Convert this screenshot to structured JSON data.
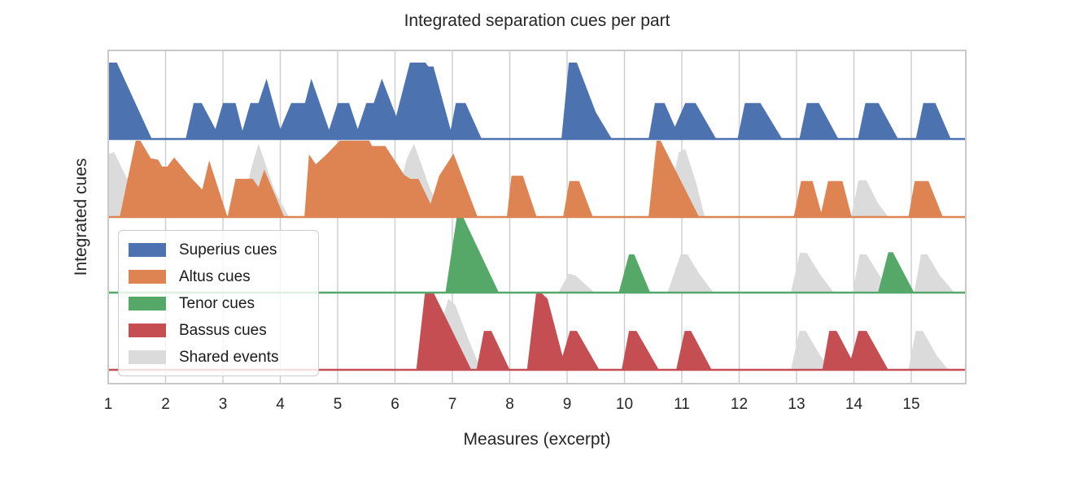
{
  "chart_data": {
    "type": "area",
    "variant": "ridgeline, one row per voice part, shared-event areas in gray behind each part",
    "title": "Integrated separation cues per part",
    "xlabel": "Measures (excerpt)",
    "ylabel": "Integrated cues",
    "x_ticks": [
      1,
      2,
      3,
      4,
      5,
      6,
      7,
      8,
      9,
      10,
      11,
      12,
      13,
      14,
      15
    ],
    "xlim": [
      0.99,
      15.96
    ],
    "grid": "vertical gridlines at each measure, no horizontal gridlines, light gray frame",
    "height_scale": "each row's values normalized 0-1 of row amplitude",
    "colors": {
      "superius": "#4C72B0",
      "altus": "#DD8452",
      "tenor": "#55A868",
      "bassus": "#C44E52",
      "shared": "#DBDBDB",
      "grid": "#CCCCCC",
      "frame": "#C9C9C9",
      "text": "#262626"
    },
    "legend": {
      "position": "lower-left",
      "entries": [
        {
          "label": "Superius cues",
          "color": "#4C72B0"
        },
        {
          "label": "Altus cues",
          "color": "#DD8452"
        },
        {
          "label": "Tenor cues",
          "color": "#55A868"
        },
        {
          "label": "Bassus cues",
          "color": "#C44E52"
        },
        {
          "label": "Shared events",
          "color": "#DBDBDB"
        }
      ]
    },
    "rows": [
      {
        "part": "Superius",
        "color": "#4C72B0",
        "shared_points": [],
        "points": [
          [
            0.99,
            1
          ],
          [
            1.15,
            1
          ],
          [
            1.76,
            0
          ],
          [
            2.35,
            0
          ],
          [
            2.49,
            0.47
          ],
          [
            2.63,
            0.47
          ],
          [
            2.87,
            0.13
          ],
          [
            3.0,
            0.47
          ],
          [
            3.22,
            0.47
          ],
          [
            3.34,
            0.11
          ],
          [
            3.48,
            0.47
          ],
          [
            3.62,
            0.47
          ],
          [
            3.76,
            0.79
          ],
          [
            4.0,
            0.13
          ],
          [
            4.19,
            0.47
          ],
          [
            4.43,
            0.47
          ],
          [
            4.54,
            0.79
          ],
          [
            4.85,
            0.12
          ],
          [
            5.0,
            0.47
          ],
          [
            5.2,
            0.47
          ],
          [
            5.35,
            0.13
          ],
          [
            5.5,
            0.47
          ],
          [
            5.63,
            0.47
          ],
          [
            5.77,
            0.79
          ],
          [
            6.02,
            0.3
          ],
          [
            6.26,
            1
          ],
          [
            6.53,
            1
          ],
          [
            6.58,
            0.95
          ],
          [
            6.67,
            0.95
          ],
          [
            6.97,
            0.12
          ],
          [
            7.06,
            0.47
          ],
          [
            7.23,
            0.47
          ],
          [
            7.51,
            0
          ],
          [
            8.9,
            0
          ],
          [
            9.03,
            1
          ],
          [
            9.17,
            1
          ],
          [
            9.5,
            0.35
          ],
          [
            9.78,
            0
          ],
          [
            10.42,
            0
          ],
          [
            10.53,
            0.47
          ],
          [
            10.7,
            0.47
          ],
          [
            10.88,
            0.16
          ],
          [
            11.06,
            0.47
          ],
          [
            11.24,
            0.47
          ],
          [
            11.6,
            0
          ],
          [
            11.97,
            0
          ],
          [
            12.1,
            0.47
          ],
          [
            12.37,
            0.47
          ],
          [
            12.75,
            0
          ],
          [
            13.05,
            0
          ],
          [
            13.18,
            0.47
          ],
          [
            13.39,
            0.47
          ],
          [
            13.73,
            0
          ],
          [
            14.07,
            0
          ],
          [
            14.2,
            0.47
          ],
          [
            14.43,
            0.47
          ],
          [
            14.77,
            0
          ],
          [
            15.08,
            0
          ],
          [
            15.21,
            0.47
          ],
          [
            15.42,
            0.47
          ],
          [
            15.69,
            0
          ],
          [
            15.96,
            0
          ]
        ]
      },
      {
        "part": "Altus",
        "color": "#DD8452",
        "shared_points": [
          [
            0.99,
            0.82
          ],
          [
            1.1,
            0.85
          ],
          [
            1.33,
            0.5
          ],
          [
            1.62,
            0.85
          ],
          [
            1.85,
            0.5
          ],
          [
            2.15,
            0
          ],
          [
            3.28,
            0
          ],
          [
            3.5,
            0.65
          ],
          [
            3.62,
            0.96
          ],
          [
            3.9,
            0.35
          ],
          [
            4.15,
            0
          ],
          [
            4.45,
            0
          ],
          [
            4.62,
            0.5
          ],
          [
            4.82,
            0
          ],
          [
            5.95,
            0
          ],
          [
            6.2,
            0.75
          ],
          [
            6.33,
            0.96
          ],
          [
            6.62,
            0.35
          ],
          [
            6.88,
            0
          ],
          [
            10.7,
            0
          ],
          [
            10.95,
            0.85
          ],
          [
            11.06,
            0.89
          ],
          [
            11.25,
            0.45
          ],
          [
            11.4,
            0
          ],
          [
            13.95,
            0
          ],
          [
            14.08,
            0.48
          ],
          [
            14.22,
            0.48
          ],
          [
            14.42,
            0.18
          ],
          [
            14.6,
            0
          ],
          [
            15.96,
            0
          ]
        ],
        "points": [
          [
            1.2,
            0
          ],
          [
            1.48,
            1
          ],
          [
            1.56,
            1
          ],
          [
            1.74,
            0.77
          ],
          [
            1.87,
            0.75
          ],
          [
            1.94,
            0.66
          ],
          [
            2.03,
            0.66
          ],
          [
            2.15,
            0.78
          ],
          [
            2.45,
            0.51
          ],
          [
            2.64,
            0.36
          ],
          [
            2.76,
            0.74
          ],
          [
            3.08,
            0
          ],
          [
            3.22,
            0.5
          ],
          [
            3.52,
            0.5
          ],
          [
            3.62,
            0.39
          ],
          [
            3.72,
            0.62
          ],
          [
            4.07,
            0
          ],
          [
            4.42,
            0
          ],
          [
            4.5,
            0.82
          ],
          [
            4.62,
            0.69
          ],
          [
            4.78,
            0.8
          ],
          [
            5.04,
            1
          ],
          [
            5.55,
            1
          ],
          [
            5.6,
            0.93
          ],
          [
            5.83,
            0.93
          ],
          [
            6.16,
            0.55
          ],
          [
            6.27,
            0.5
          ],
          [
            6.41,
            0.5
          ],
          [
            6.62,
            0.17
          ],
          [
            6.77,
            0.54
          ],
          [
            7.02,
            0.83
          ],
          [
            7.44,
            0
          ],
          [
            7.95,
            0
          ],
          [
            8.03,
            0.54
          ],
          [
            8.23,
            0.54
          ],
          [
            8.47,
            0
          ],
          [
            8.93,
            0
          ],
          [
            9.04,
            0.47
          ],
          [
            9.21,
            0.47
          ],
          [
            9.45,
            0
          ],
          [
            10.42,
            0
          ],
          [
            10.56,
            1
          ],
          [
            10.63,
            1
          ],
          [
            11.3,
            0
          ],
          [
            12.95,
            0
          ],
          [
            13.08,
            0.47
          ],
          [
            13.28,
            0.47
          ],
          [
            13.43,
            0.06
          ],
          [
            13.55,
            0.47
          ],
          [
            13.8,
            0.47
          ],
          [
            13.96,
            0
          ],
          [
            14.95,
            0
          ],
          [
            15.06,
            0.47
          ],
          [
            15.3,
            0.47
          ],
          [
            15.55,
            0
          ],
          [
            15.96,
            0
          ]
        ]
      },
      {
        "part": "Tenor",
        "color": "#55A868",
        "shared_points": [
          [
            8.85,
            0
          ],
          [
            9.03,
            0.25
          ],
          [
            9.15,
            0.22
          ],
          [
            9.48,
            0
          ],
          [
            10.75,
            0
          ],
          [
            10.98,
            0.5
          ],
          [
            11.1,
            0.5
          ],
          [
            11.3,
            0.25
          ],
          [
            11.55,
            0
          ],
          [
            12.9,
            0
          ],
          [
            13.06,
            0.52
          ],
          [
            13.18,
            0.52
          ],
          [
            13.4,
            0.25
          ],
          [
            13.65,
            0
          ],
          [
            13.98,
            0
          ],
          [
            14.1,
            0.5
          ],
          [
            14.22,
            0.5
          ],
          [
            14.45,
            0.22
          ],
          [
            14.62,
            0
          ],
          [
            15.05,
            0
          ],
          [
            15.17,
            0.5
          ],
          [
            15.28,
            0.5
          ],
          [
            15.5,
            0.22
          ],
          [
            15.75,
            0
          ],
          [
            15.96,
            0
          ]
        ],
        "points": [
          [
            6.88,
            0
          ],
          [
            7.08,
            1
          ],
          [
            7.18,
            1
          ],
          [
            7.81,
            0
          ],
          [
            9.9,
            0
          ],
          [
            10.08,
            0.5
          ],
          [
            10.17,
            0.5
          ],
          [
            10.45,
            0
          ],
          [
            14.42,
            0
          ],
          [
            14.6,
            0.53
          ],
          [
            14.68,
            0.53
          ],
          [
            15.05,
            0
          ],
          [
            15.96,
            0
          ]
        ]
      },
      {
        "part": "Bassus",
        "color": "#C44E52",
        "shared_points": [
          [
            6.55,
            0
          ],
          [
            6.93,
            0.93
          ],
          [
            7.05,
            0.85
          ],
          [
            7.28,
            0.4
          ],
          [
            7.5,
            0
          ],
          [
            12.9,
            0
          ],
          [
            13.05,
            0.51
          ],
          [
            13.16,
            0.51
          ],
          [
            13.42,
            0.18
          ],
          [
            13.6,
            0
          ],
          [
            14.95,
            0
          ],
          [
            15.08,
            0.51
          ],
          [
            15.2,
            0.51
          ],
          [
            15.45,
            0.18
          ],
          [
            15.65,
            0
          ],
          [
            15.96,
            0
          ]
        ],
        "points": [
          [
            6.37,
            0
          ],
          [
            6.52,
            1
          ],
          [
            6.68,
            1
          ],
          [
            7.33,
            0
          ],
          [
            7.42,
            0
          ],
          [
            7.55,
            0.51
          ],
          [
            7.68,
            0.51
          ],
          [
            8.0,
            0
          ],
          [
            8.3,
            0
          ],
          [
            8.46,
            1
          ],
          [
            8.56,
            1
          ],
          [
            8.66,
            0.93
          ],
          [
            8.92,
            0.18
          ],
          [
            9.05,
            0.51
          ],
          [
            9.17,
            0.51
          ],
          [
            9.56,
            0
          ],
          [
            9.95,
            0
          ],
          [
            10.08,
            0.51
          ],
          [
            10.21,
            0.51
          ],
          [
            10.6,
            0
          ],
          [
            10.9,
            0
          ],
          [
            11.05,
            0.51
          ],
          [
            11.16,
            0.51
          ],
          [
            11.52,
            0
          ],
          [
            13.45,
            0
          ],
          [
            13.57,
            0.51
          ],
          [
            13.7,
            0.51
          ],
          [
            13.95,
            0.15
          ],
          [
            14.08,
            0.51
          ],
          [
            14.22,
            0.51
          ],
          [
            14.6,
            0
          ],
          [
            15.96,
            0
          ]
        ]
      }
    ]
  }
}
